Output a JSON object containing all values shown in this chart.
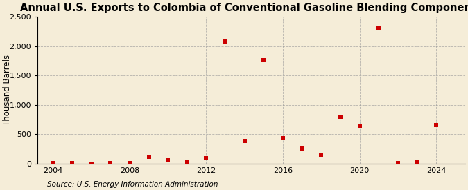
{
  "title": "Annual U.S. Exports to Colombia of Conventional Gasoline Blending Components",
  "ylabel": "Thousand Barrels",
  "source": "Source: U.S. Energy Information Administration",
  "years": [
    2004,
    2005,
    2006,
    2007,
    2008,
    2009,
    2010,
    2011,
    2012,
    2013,
    2014,
    2015,
    2016,
    2017,
    2018,
    2019,
    2020,
    2021,
    2022,
    2023,
    2024
  ],
  "values": [
    3,
    5,
    2,
    5,
    5,
    120,
    50,
    30,
    90,
    2080,
    390,
    1760,
    430,
    260,
    155,
    800,
    650,
    2320,
    4,
    15,
    660
  ],
  "marker_color": "#cc0000",
  "background_color": "#f5edd8",
  "grid_color": "#999999",
  "ylim": [
    0,
    2500
  ],
  "yticks": [
    0,
    500,
    1000,
    1500,
    2000,
    2500
  ],
  "ytick_labels": [
    "0",
    "500",
    "1,000",
    "1,500",
    "2,000",
    "2,500"
  ],
  "xlim": [
    2003.2,
    2025.5
  ],
  "xticks": [
    2004,
    2008,
    2012,
    2016,
    2020,
    2024
  ],
  "title_fontsize": 10.5,
  "label_fontsize": 8.5,
  "tick_fontsize": 8,
  "source_fontsize": 7.5
}
